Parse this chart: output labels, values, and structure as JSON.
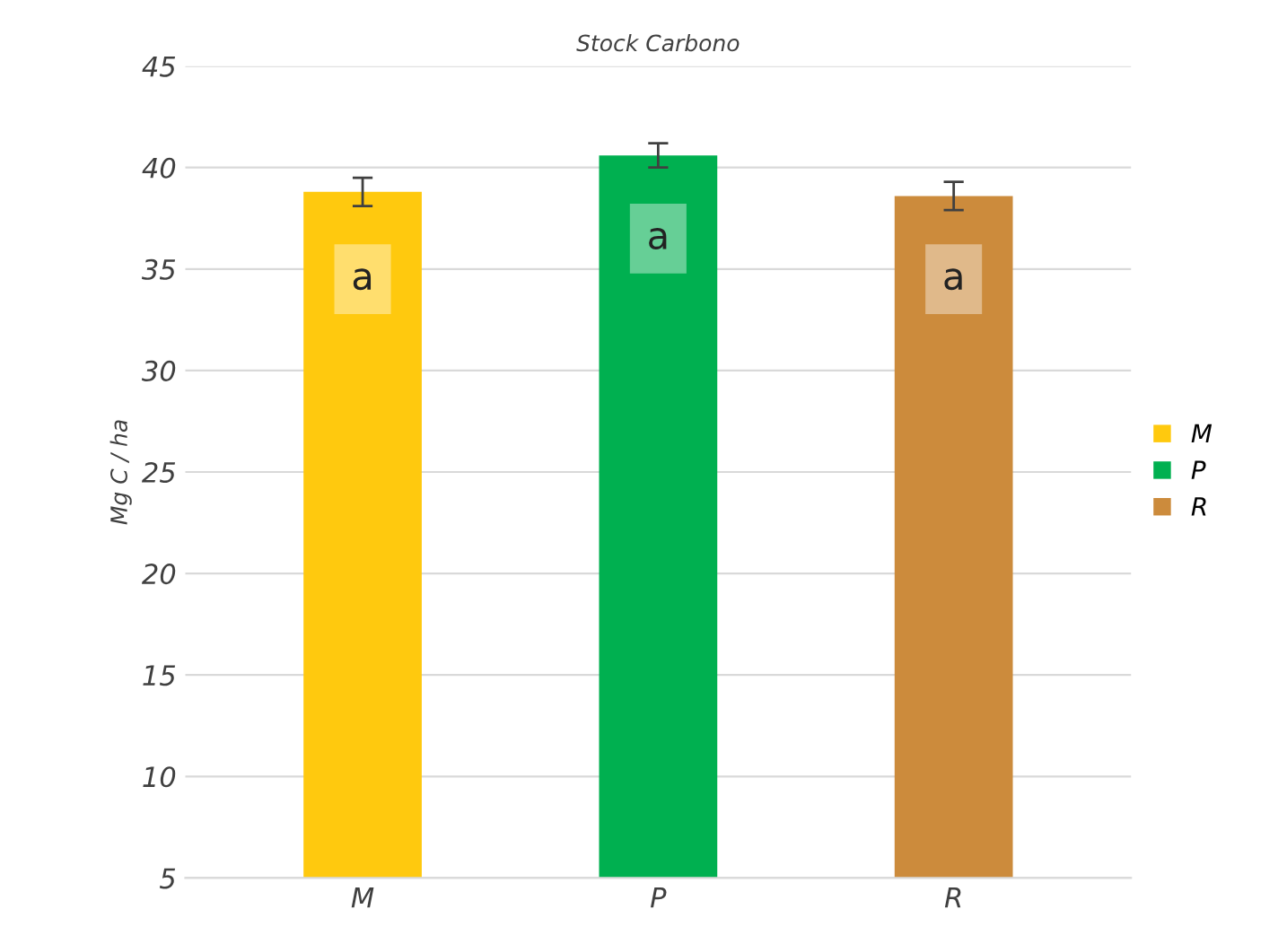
{
  "chart_data": {
    "type": "bar",
    "title": "Stock Carbono",
    "ylabel": "Mg C / ha",
    "categories": [
      "M",
      "P",
      "R"
    ],
    "series": [
      {
        "name": "M",
        "color": "#ffc90e",
        "values": [
          38.8,
          null,
          null
        ],
        "errors": [
          0.7,
          null,
          null
        ]
      },
      {
        "name": "P",
        "color": "#00b050",
        "values": [
          null,
          40.6,
          null
        ],
        "errors": [
          null,
          0.6,
          null
        ]
      },
      {
        "name": "R",
        "color": "#cc8b3c",
        "values": [
          null,
          null,
          38.6
        ],
        "errors": [
          null,
          null,
          0.7
        ]
      }
    ],
    "annotations": [
      {
        "text": "a",
        "x": "M",
        "y": 34.5
      },
      {
        "text": "a",
        "x": "P",
        "y": 36.5
      },
      {
        "text": "a",
        "x": "R",
        "y": 34.5
      }
    ],
    "ylim": [
      5,
      45
    ],
    "yticks": [
      5,
      10,
      15,
      20,
      25,
      30,
      35,
      40,
      45
    ],
    "grid": "y",
    "legend": "right"
  }
}
